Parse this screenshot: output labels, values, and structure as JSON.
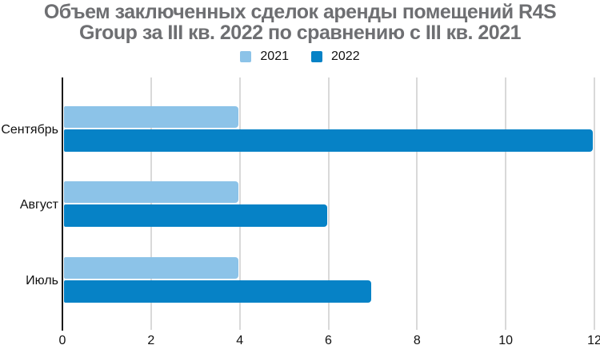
{
  "page": {
    "background_color": "#ffffff"
  },
  "chart_data": {
    "type": "bar",
    "orientation": "horizontal",
    "title": "Объем заключенных сделок аренды помещений R4S Group за III кв. 2022 по сравнению с III кв. 2021",
    "title_lines": [
      "Объем заключенных сделок аренды помещений R4S",
      "Group за III кв. 2022 по сравнению с III кв. 2021"
    ],
    "title_color": "#6e6f72",
    "categories": [
      "Сентябрь",
      "Август",
      "Июль"
    ],
    "series": [
      {
        "name": "2021",
        "color": "#8cc3e8",
        "values": [
          4,
          4,
          4
        ]
      },
      {
        "name": "2022",
        "color": "#0682c6",
        "values": [
          12,
          6,
          7
        ]
      }
    ],
    "x_ticks": [
      0,
      2,
      4,
      6,
      8,
      10,
      12
    ],
    "xlim": [
      0,
      12
    ],
    "xlabel": "",
    "ylabel": "",
    "grid": true,
    "gridline_color": "#d9d9d9",
    "axis_color": "#1a1a1a",
    "legend_position": "top",
    "legend_text_color": "#111111",
    "tick_label_color": "#111111"
  }
}
